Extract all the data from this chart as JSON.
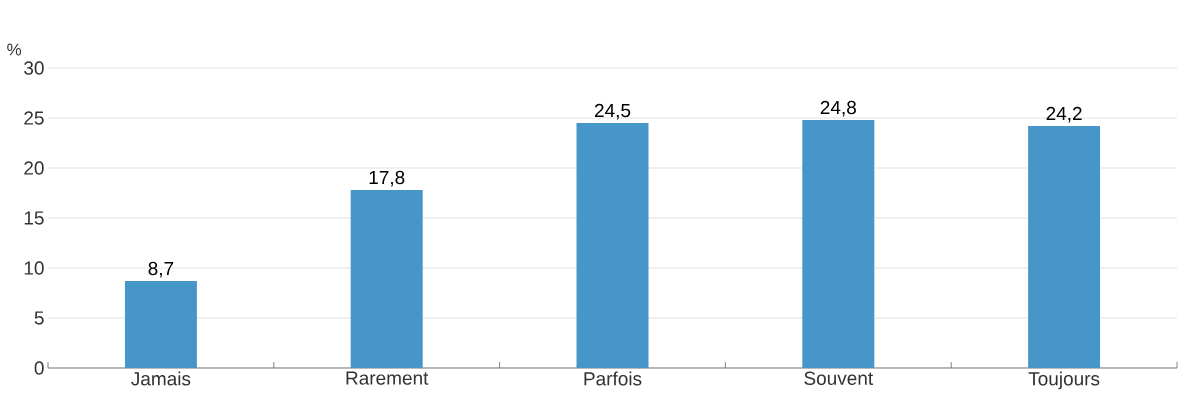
{
  "chart_data": {
    "type": "bar",
    "ylabel": "%",
    "categories": [
      "Jamais",
      "Rarement",
      "Parfois",
      "Souvent",
      "Toujours"
    ],
    "values": [
      8.7,
      17.8,
      24.5,
      24.8,
      24.2
    ],
    "value_labels": [
      "8,7",
      "17,8",
      "24,5",
      "24,8",
      "24,2"
    ],
    "color": "#4796c9",
    "ylim": [
      0,
      30
    ],
    "yticks": [
      0,
      5,
      10,
      15,
      20,
      25,
      30
    ],
    "grid": "y"
  }
}
